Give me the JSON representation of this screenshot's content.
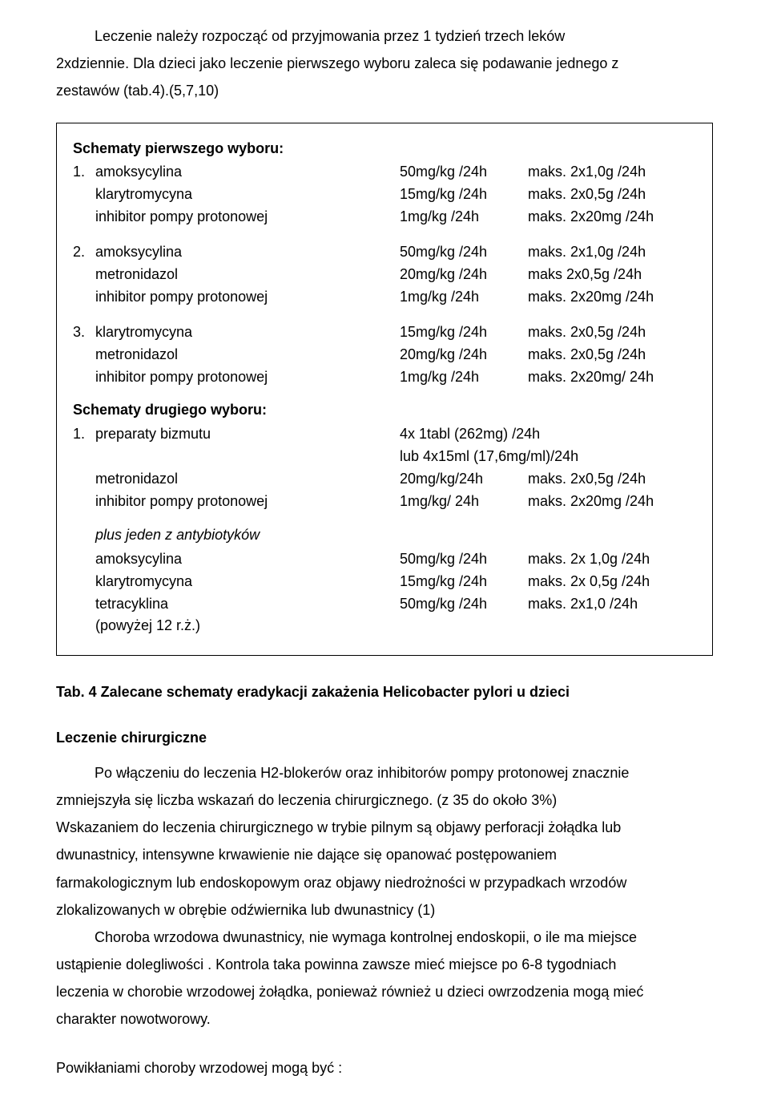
{
  "intro": {
    "line1": "Leczenie należy  rozpocząć od przyjmowania  przez 1 tydzień  trzech leków",
    "line2": "2xdziennie. Dla dzieci jako leczenie pierwszego wyboru  zaleca się  podawanie jednego z",
    "line3": "zestawów (tab.4).(5,7,10)"
  },
  "box": {
    "heading1": "Schematy  pierwszego wyboru:",
    "s1": {
      "idx": "1.",
      "r1": {
        "name": "amoksycylina",
        "dose": "50mg/kg /24h",
        "max": "maks. 2x1,0g /24h"
      },
      "r2": {
        "name": "klarytromycyna",
        "dose": "15mg/kg /24h",
        "max": "maks. 2x0,5g /24h"
      },
      "r3": {
        "name": "inhibitor pompy protonowej",
        "dose": "1mg/kg /24h",
        "max": "maks. 2x20mg /24h"
      }
    },
    "s2": {
      "idx": "2.",
      "r1": {
        "name": "amoksycylina",
        "dose": "50mg/kg /24h",
        "max": "maks. 2x1,0g /24h"
      },
      "r2": {
        "name": "metronidazol",
        "dose": "20mg/kg /24h",
        "max": "maks   2x0,5g /24h"
      },
      "r3": {
        "name": "inhibitor pompy protonowej",
        "dose": "1mg/kg /24h",
        "max": "maks. 2x20mg /24h"
      }
    },
    "s3": {
      "idx": "3.",
      "r1": {
        "name": "klarytromycyna",
        "dose": "15mg/kg /24h",
        "max": "maks. 2x0,5g /24h"
      },
      "r2": {
        "name": "metronidazol",
        "dose": "20mg/kg /24h",
        "max": "maks. 2x0,5g /24h"
      },
      "r3": {
        "name": "inhibitor pompy protonowej",
        "dose": "1mg/kg /24h",
        "max": "maks. 2x20mg/ 24h"
      }
    },
    "heading2": "Schematy drugiego wyboru:",
    "s4": {
      "idx": "1.",
      "r1": {
        "name": "preparaty bizmutu",
        "dose": "4x 1tabl (262mg)   /24h"
      },
      "r1b": {
        "dose": "lub 4x15ml  (17,6mg/ml)/24h"
      },
      "r2": {
        "name": "metronidazol",
        "dose": "20mg/kg/24h",
        "max": "maks. 2x0,5g /24h"
      },
      "r3": {
        "name": "inhibitor pompy protonowej",
        "dose": "1mg/kg/ 24h",
        "max": "maks. 2x20mg /24h"
      }
    },
    "plus": "plus jeden z antybiotyków",
    "s5": {
      "r1": {
        "name": "amoksycylina",
        "dose": "50mg/kg /24h",
        "max": "maks. 2x 1,0g /24h"
      },
      "r2": {
        "name": "klarytromycyna",
        "dose": "15mg/kg /24h",
        "max": "maks. 2x 0,5g /24h"
      },
      "r3": {
        "name": "tetracyklina",
        "dose": "50mg/kg /24h",
        "max": "maks. 2x1,0 /24h"
      },
      "r4": {
        "name": "(powyżej 12 r.ż.)"
      }
    }
  },
  "caption": "Tab. 4 Zalecane schematy eradykacji  zakażenia Helicobacter pylori u dzieci",
  "subhead": "Leczenie chirurgiczne",
  "body": {
    "p1a": "Po włączeniu do leczenia H2-blokerów oraz inhibitorów pompy protonowej znacznie",
    "p1b": "zmniejszyła się liczba wskazań do leczenia chirurgicznego. (z 35 do około 3%)",
    "p1c": "Wskazaniem do leczenia chirurgicznego w trybie pilnym są objawy perforacji żołądka lub",
    "p1d": "dwunastnicy, intensywne krwawienie nie dające się opanować postępowaniem",
    "p1e": "farmakologicznym lub endoskopowym oraz objawy niedrożności w przypadkach wrzodów",
    "p1f": "zlokalizowanych w obrębie odźwiernika lub dwunastnicy (1)",
    "p2a": "Choroba wrzodowa dwunastnicy, nie wymaga kontrolnej endoskopii, o ile ma miejsce",
    "p2b": "ustąpienie dolegliwości . Kontrola taka powinna zawsze mieć miejsce  po 6-8 tygodniach",
    "p2c": "leczenia w chorobie wrzodowej żołądka, ponieważ również u dzieci owrzodzenia mogą mieć",
    "p2d": "charakter nowotworowy."
  },
  "last": "Powikłaniami choroby wrzodowej mogą być :"
}
